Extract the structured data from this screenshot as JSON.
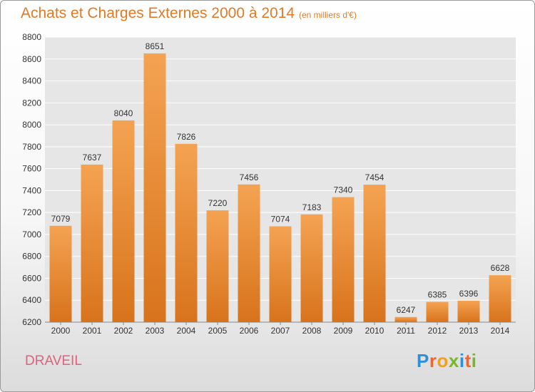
{
  "header": {
    "title": "Achats et Charges Externes 2000 à 2014",
    "subtitle": "(en milliers d'€)"
  },
  "footer": {
    "commune": "DRAVEIL",
    "brand": "Proxiti"
  },
  "colors": {
    "title": "#e07a25",
    "bar_top": "#f4a352",
    "bar_bottom": "#d8731c",
    "commune": "#e2607b",
    "grid": "#ffffff",
    "plot_background": "#e6e6e6"
  },
  "chart_data": {
    "type": "bar",
    "categories": [
      "2000",
      "2001",
      "2002",
      "2003",
      "2004",
      "2005",
      "2006",
      "2007",
      "2008",
      "2009",
      "2010",
      "2011",
      "2012",
      "2013",
      "2014"
    ],
    "values": [
      7079,
      7637,
      8040,
      8651,
      7826,
      7220,
      7456,
      7074,
      7183,
      7340,
      7454,
      6247,
      6385,
      6396,
      6628
    ],
    "ylim": [
      6200,
      8800
    ],
    "yticks": [
      6200,
      6400,
      6600,
      6800,
      7000,
      7200,
      7400,
      7600,
      7800,
      8000,
      8200,
      8400,
      8600,
      8800
    ],
    "grid": true,
    "data_labels": true
  }
}
